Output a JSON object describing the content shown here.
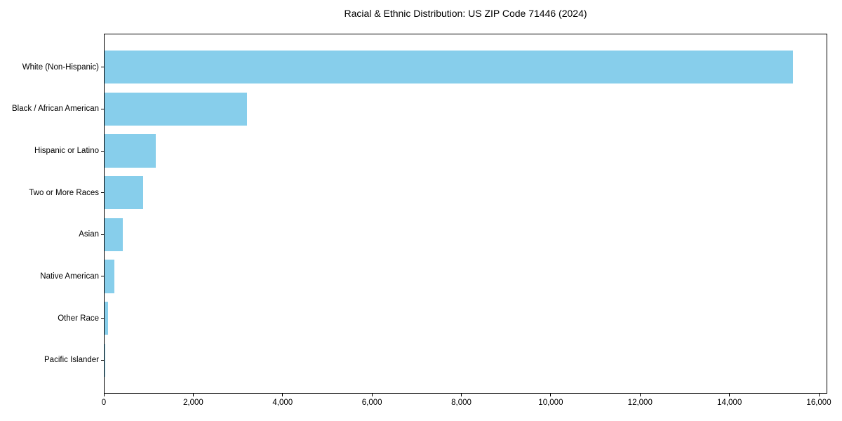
{
  "figure": {
    "background": "#ffffff",
    "text_color": "#000000",
    "frame_color": "#000000"
  },
  "chart_data": {
    "type": "bar",
    "orientation": "horizontal",
    "title": "Racial & Ethnic Distribution: US ZIP Code 71446 (2024)",
    "xlabel": "",
    "ylabel": "",
    "categories": [
      "White (Non-Hispanic)",
      "Black / African American",
      "Hispanic or Latino",
      "Two or More Races",
      "Asian",
      "Native American",
      "Other Race",
      "Pacific Islander"
    ],
    "values": [
      15410,
      3190,
      1150,
      870,
      410,
      220,
      75,
      10
    ],
    "xlim": [
      0,
      16188
    ],
    "x_ticks": [
      0,
      2000,
      4000,
      6000,
      8000,
      10000,
      12000,
      14000,
      16000
    ],
    "x_tick_labels": [
      "0",
      "2,000",
      "4,000",
      "6,000",
      "8,000",
      "10,000",
      "12,000",
      "14,000",
      "16,000"
    ],
    "bar_color": "#87CEEB",
    "grid": false,
    "legend": null
  }
}
